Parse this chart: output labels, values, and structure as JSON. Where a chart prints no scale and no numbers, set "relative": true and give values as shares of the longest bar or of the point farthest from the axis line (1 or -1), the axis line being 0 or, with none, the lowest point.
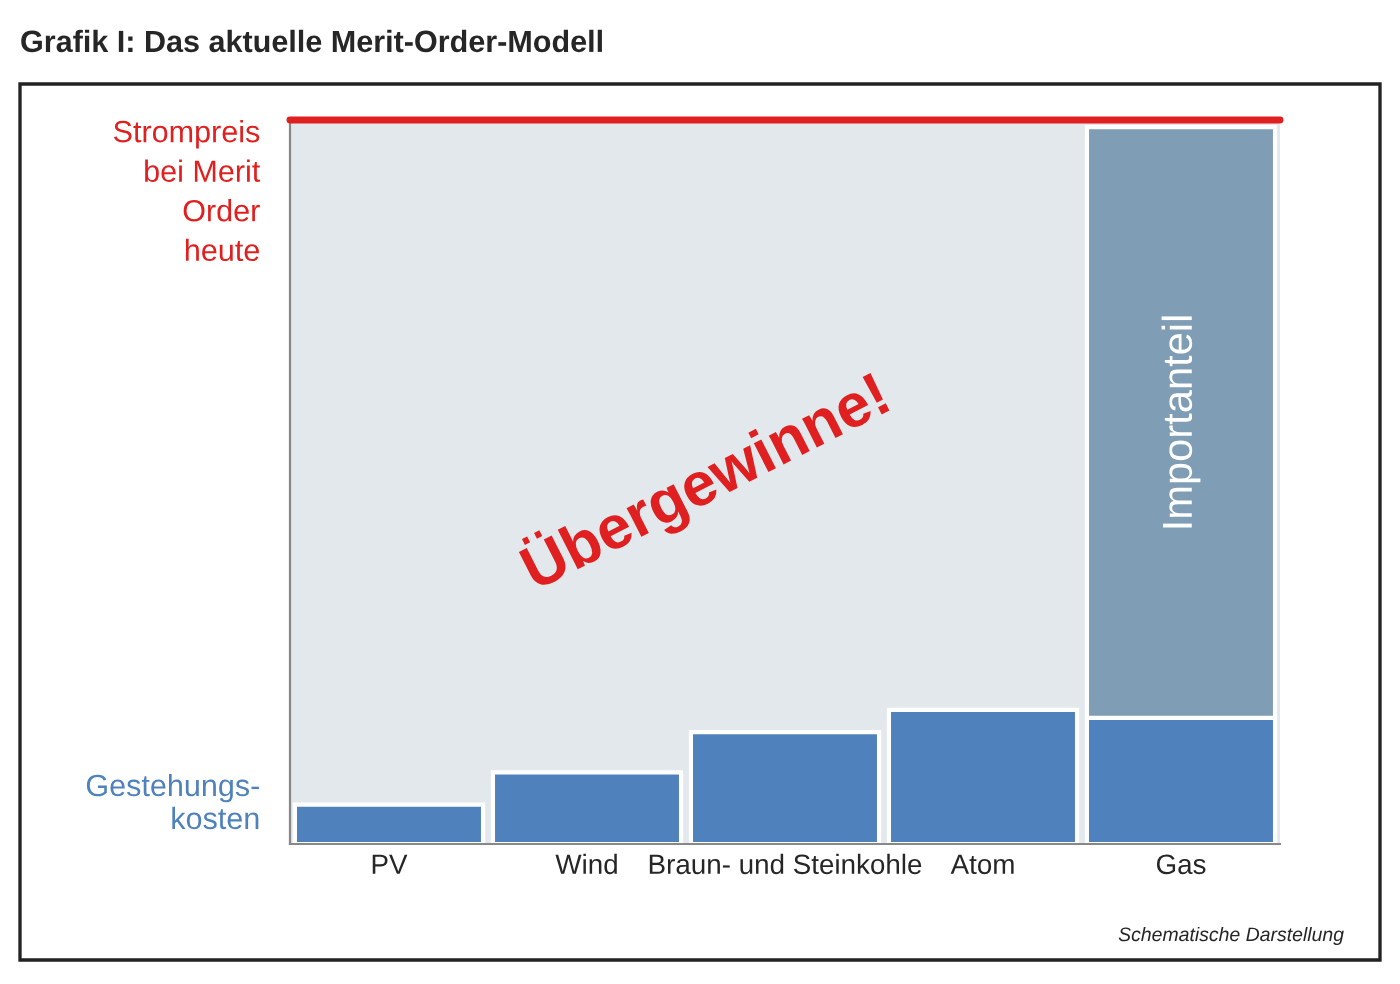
{
  "chart_data": {
    "type": "bar",
    "title": "Grafik I: Das aktuelle Merit-Order-Modell",
    "relative": true,
    "stacked": true,
    "categories": [
      "PV",
      "Wind",
      "Braun- und Steinkohle",
      "Atom",
      "Gas"
    ],
    "series": [
      {
        "name": "Gestehungs-\nkosten",
        "color": "#4f81bd",
        "values": [
          0.055,
          0.1,
          0.156,
          0.187,
          0.176
        ]
      },
      {
        "name": "Importanteil",
        "color": "#7f9db4",
        "values": [
          null,
          null,
          null,
          null,
          0.824
        ]
      }
    ],
    "ref_lines": [
      {
        "axis": "y",
        "value": 1.01,
        "label": "Strompreis\nbei Merit\nOrder\nheute",
        "color": "#e02020"
      }
    ],
    "bands": [
      {
        "axis": "y",
        "from": 0,
        "to": 1.01,
        "label": "Übergewinne!",
        "color": "#e2e8ec"
      }
    ],
    "annotations": [
      "Schematische Darstellung"
    ],
    "grid": false,
    "legend": false
  }
}
